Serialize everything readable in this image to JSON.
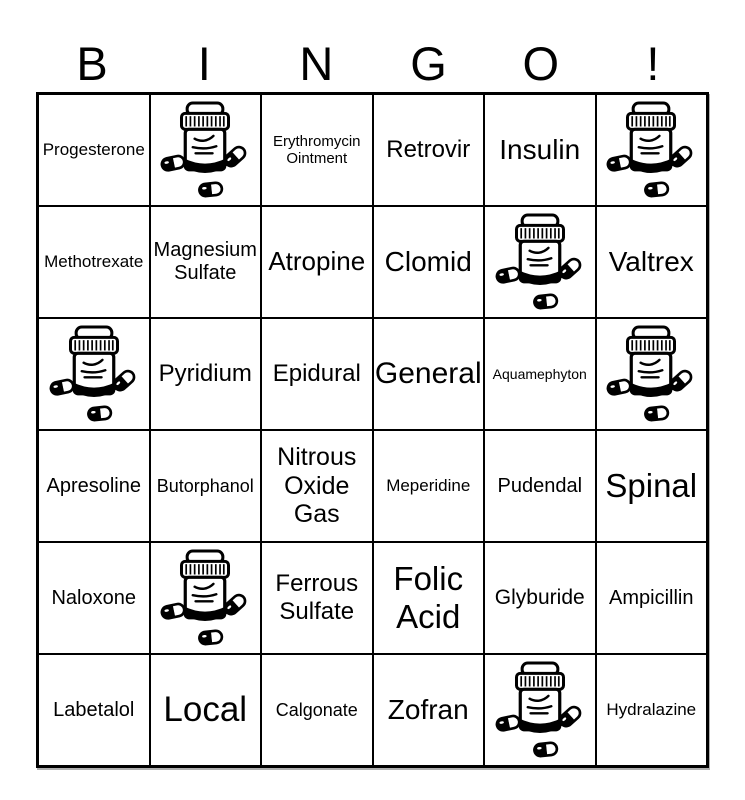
{
  "title": {
    "letters": [
      "B",
      "I",
      "N",
      "G",
      "O",
      "!"
    ]
  },
  "colors": {
    "ink": "#000000",
    "background": "#ffffff",
    "grid_line": "#000000"
  },
  "grid": {
    "rows": [
      [
        {
          "type": "text",
          "label": "Progesterone",
          "font_px": 17
        },
        {
          "type": "icon",
          "icon": "pill-bottle-icon"
        },
        {
          "type": "text",
          "label": "Erythromycin Ointment",
          "font_px": 15
        },
        {
          "type": "text",
          "label": "Retrovir",
          "font_px": 24
        },
        {
          "type": "text",
          "label": "Insulin",
          "font_px": 28
        },
        {
          "type": "icon",
          "icon": "pill-bottle-icon"
        }
      ],
      [
        {
          "type": "text",
          "label": "Methotrexate",
          "font_px": 17
        },
        {
          "type": "text",
          "label": "Magnesium Sulfate",
          "font_px": 20
        },
        {
          "type": "text",
          "label": "Atropine",
          "font_px": 26
        },
        {
          "type": "text",
          "label": "Clomid",
          "font_px": 28
        },
        {
          "type": "icon",
          "icon": "pill-bottle-icon"
        },
        {
          "type": "text",
          "label": "Valtrex",
          "font_px": 28
        }
      ],
      [
        {
          "type": "icon",
          "icon": "pill-bottle-icon"
        },
        {
          "type": "text",
          "label": "Pyridium",
          "font_px": 24
        },
        {
          "type": "text",
          "label": "Epidural",
          "font_px": 24
        },
        {
          "type": "text",
          "label": "General",
          "font_px": 30
        },
        {
          "type": "text",
          "label": "Aquamephyton",
          "font_px": 14
        },
        {
          "type": "icon",
          "icon": "pill-bottle-icon"
        }
      ],
      [
        {
          "type": "text",
          "label": "Apresoline",
          "font_px": 20
        },
        {
          "type": "text",
          "label": "Butorphanol",
          "font_px": 18
        },
        {
          "type": "text",
          "label": "Nitrous Oxide Gas",
          "font_px": 25
        },
        {
          "type": "text",
          "label": "Meperidine",
          "font_px": 17
        },
        {
          "type": "text",
          "label": "Pudendal",
          "font_px": 20
        },
        {
          "type": "text",
          "label": "Spinal",
          "font_px": 33
        }
      ],
      [
        {
          "type": "text",
          "label": "Naloxone",
          "font_px": 20
        },
        {
          "type": "icon",
          "icon": "pill-bottle-icon"
        },
        {
          "type": "text",
          "label": "Ferrous Sulfate",
          "font_px": 24
        },
        {
          "type": "text",
          "label": "Folic Acid",
          "font_px": 33
        },
        {
          "type": "text",
          "label": "Glyburide",
          "font_px": 21
        },
        {
          "type": "text",
          "label": "Ampicillin",
          "font_px": 20
        }
      ],
      [
        {
          "type": "text",
          "label": "Labetalol",
          "font_px": 20
        },
        {
          "type": "text",
          "label": "Local",
          "font_px": 35
        },
        {
          "type": "text",
          "label": "Calgonate",
          "font_px": 18
        },
        {
          "type": "text",
          "label": "Zofran",
          "font_px": 28
        },
        {
          "type": "icon",
          "icon": "pill-bottle-icon"
        },
        {
          "type": "text",
          "label": "Hydralazine",
          "font_px": 17
        }
      ]
    ]
  }
}
